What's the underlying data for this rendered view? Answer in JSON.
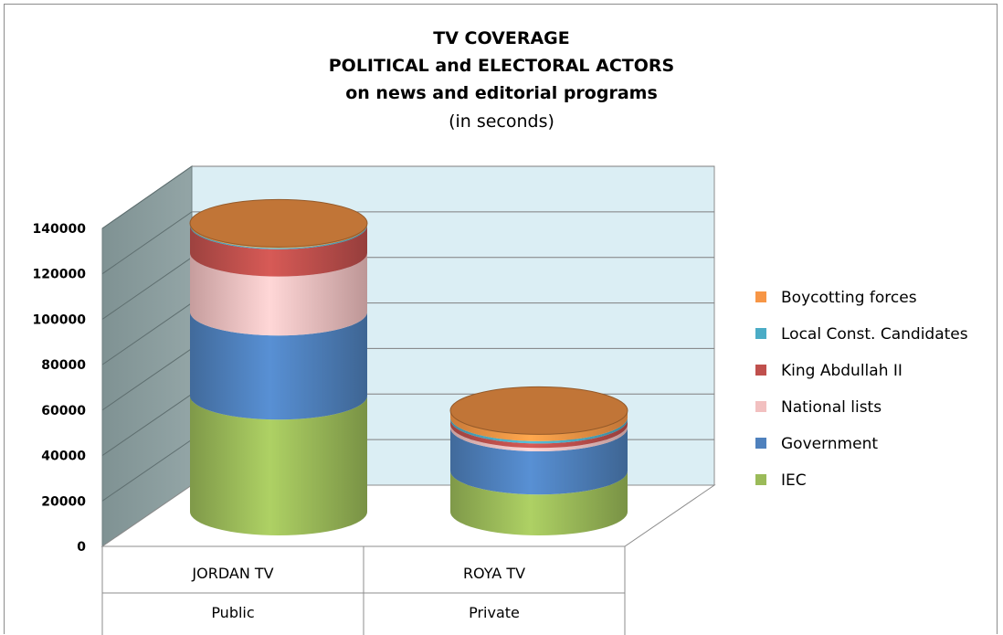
{
  "chart_data": {
    "type": "bar",
    "style": "3d-stacked-cylinder",
    "title_lines": [
      "TV COVERAGE",
      "POLITICAL and ELECTORAL ACTORS",
      "on news and editorial programs"
    ],
    "subtitle": "(in seconds)",
    "categories": [
      "JORDAN TV",
      "ROYA TV"
    ],
    "category_groups": [
      "Public",
      "Private"
    ],
    "ylim": [
      0,
      140000
    ],
    "yticks": [
      "0",
      "20000",
      "40000",
      "60000",
      "80000",
      "100000",
      "120000",
      "140000"
    ],
    "grid": true,
    "legend_position": "right",
    "series": [
      {
        "name": "IEC",
        "color": "#9bbb59",
        "values": [
          51000,
          18000
        ]
      },
      {
        "name": "Government",
        "color": "#4f81bd",
        "values": [
          37000,
          19000
        ]
      },
      {
        "name": "National lists",
        "color": "#f2c0c0",
        "values": [
          26000,
          1500
        ]
      },
      {
        "name": "King Abdullah II",
        "color": "#c0504d",
        "values": [
          12000,
          2000
        ]
      },
      {
        "name": "Local Const. Candidates",
        "color": "#4bacc6",
        "values": [
          500,
          1000
        ]
      },
      {
        "name": "Boycotting forces",
        "color": "#f79646",
        "values": [
          500,
          3000
        ]
      }
    ]
  }
}
